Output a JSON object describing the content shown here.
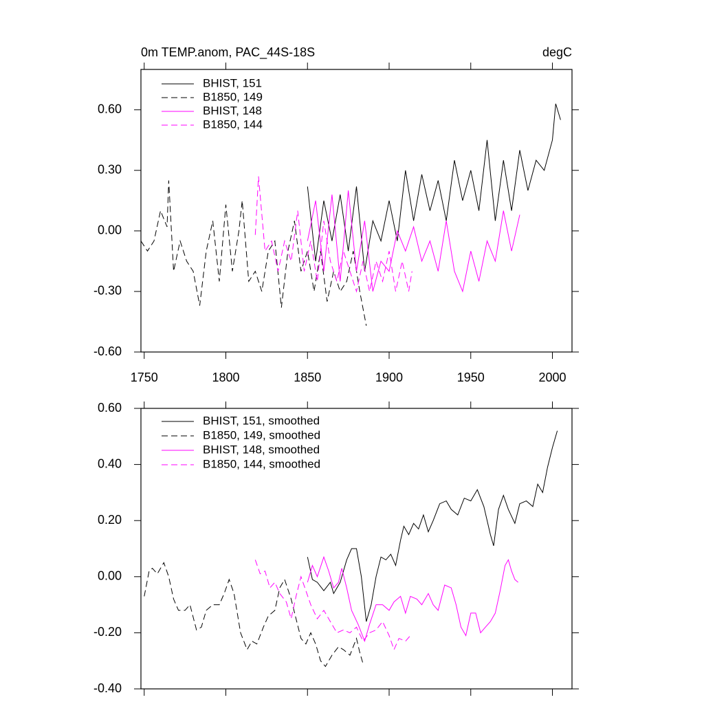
{
  "chart_data": [
    {
      "type": "line",
      "title": "0m TEMP.anom, PAC_44S-18S",
      "units": "degC",
      "xlim": [
        1748,
        2012
      ],
      "ylim": [
        -0.6,
        0.8
      ],
      "xticks": [
        1750,
        1800,
        1850,
        1900,
        1950,
        2000
      ],
      "yticks": [
        {
          "value": -0.6,
          "label": "-0.60"
        },
        {
          "value": -0.3,
          "label": "-0.30"
        },
        {
          "value": 0,
          "label": "0.00"
        },
        {
          "value": 0.3,
          "label": "0.30"
        },
        {
          "value": 0.6,
          "label": "0.60"
        }
      ],
      "series": [
        {
          "name": "BHIST, 151",
          "color": "#000000",
          "linestyle": "solid",
          "x": [
            1850,
            1855,
            1860,
            1865,
            1870,
            1875,
            1880,
            1885,
            1890,
            1895,
            1900,
            1905,
            1910,
            1915,
            1920,
            1925,
            1930,
            1935,
            1940,
            1945,
            1950,
            1955,
            1960,
            1965,
            1970,
            1975,
            1980,
            1985,
            1990,
            1995,
            2000,
            2002,
            2005
          ],
          "values": [
            0.22,
            -0.15,
            0.15,
            -0.05,
            0.18,
            -0.1,
            0.22,
            -0.2,
            0.05,
            -0.05,
            0.15,
            -0.05,
            0.3,
            0.05,
            0.28,
            0.1,
            0.25,
            0.05,
            0.35,
            0.15,
            0.3,
            0.1,
            0.45,
            0.05,
            0.35,
            0.1,
            0.4,
            0.2,
            0.35,
            0.3,
            0.45,
            0.63,
            0.55
          ]
        },
        {
          "name": "B1850, 149",
          "color": "#000000",
          "linestyle": "dashed",
          "x": [
            1748,
            1752,
            1756,
            1760,
            1764,
            1765,
            1768,
            1772,
            1776,
            1780,
            1784,
            1788,
            1792,
            1796,
            1800,
            1804,
            1808,
            1810,
            1814,
            1818,
            1822,
            1826,
            1830,
            1834,
            1838,
            1842,
            1846,
            1850,
            1854,
            1858,
            1862,
            1866,
            1870,
            1874,
            1878,
            1882,
            1886
          ],
          "values": [
            -0.05,
            -0.1,
            -0.05,
            0.1,
            0.02,
            0.25,
            -0.2,
            -0.05,
            -0.15,
            -0.2,
            -0.37,
            -0.1,
            0.05,
            -0.25,
            0.13,
            -0.2,
            0.0,
            0.15,
            -0.25,
            -0.2,
            -0.3,
            -0.1,
            -0.05,
            -0.38,
            -0.1,
            0.05,
            -0.2,
            -0.1,
            -0.3,
            -0.1,
            -0.35,
            -0.2,
            -0.3,
            -0.25,
            -0.1,
            -0.3,
            -0.47
          ]
        },
        {
          "name": "BHIST, 148",
          "color": "#ff00ff",
          "linestyle": "solid",
          "x": [
            1850,
            1855,
            1860,
            1865,
            1870,
            1875,
            1880,
            1885,
            1890,
            1895,
            1900,
            1905,
            1910,
            1915,
            1920,
            1925,
            1930,
            1935,
            1940,
            1945,
            1950,
            1955,
            1960,
            1965,
            1970,
            1975,
            1980
          ],
          "values": [
            -0.05,
            0.15,
            -0.2,
            0.18,
            -0.25,
            0.2,
            -0.2,
            0.05,
            -0.3,
            -0.15,
            -0.2,
            0.0,
            -0.1,
            0.02,
            -0.15,
            -0.05,
            -0.2,
            0.05,
            -0.2,
            -0.3,
            -0.1,
            -0.25,
            -0.05,
            -0.15,
            0.1,
            -0.1,
            0.08
          ]
        },
        {
          "name": "B1850, 144",
          "color": "#ff00ff",
          "linestyle": "dashed",
          "x": [
            1818,
            1820,
            1824,
            1828,
            1832,
            1836,
            1840,
            1844,
            1848,
            1852,
            1856,
            1860,
            1864,
            1868,
            1872,
            1876,
            1880,
            1884,
            1888,
            1892,
            1896,
            1900,
            1904,
            1908,
            1912,
            1914
          ],
          "values": [
            -0.02,
            0.27,
            -0.1,
            -0.05,
            -0.2,
            -0.05,
            -0.15,
            0.1,
            -0.2,
            -0.05,
            -0.25,
            0.05,
            -0.15,
            -0.25,
            -0.1,
            -0.2,
            -0.3,
            -0.15,
            -0.3,
            -0.15,
            -0.25,
            -0.1,
            -0.3,
            -0.15,
            -0.3,
            -0.2
          ]
        }
      ]
    },
    {
      "type": "line",
      "xlim": [
        1748,
        2012
      ],
      "ylim": [
        -0.4,
        0.6
      ],
      "xticks": [
        1750,
        1800,
        1850,
        1900,
        1950,
        2000
      ],
      "yticks": [
        {
          "value": -0.4,
          "label": "-0.40"
        },
        {
          "value": -0.2,
          "label": "-0.20"
        },
        {
          "value": 0,
          "label": "0.00"
        },
        {
          "value": 0.2,
          "label": "0.20"
        },
        {
          "value": 0.4,
          "label": "0.40"
        },
        {
          "value": 0.6,
          "label": "0.60"
        }
      ],
      "series": [
        {
          "name": "BHIST, 151, smoothed",
          "color": "#000000",
          "linestyle": "solid",
          "x": [
            1850,
            1853,
            1856,
            1860,
            1864,
            1866,
            1870,
            1874,
            1877,
            1880,
            1883,
            1886,
            1889,
            1892,
            1895,
            1898,
            1901,
            1904,
            1907,
            1909,
            1912,
            1915,
            1918,
            1921,
            1924,
            1927,
            1931,
            1935,
            1938,
            1942,
            1946,
            1950,
            1954,
            1958,
            1962,
            1964,
            1967,
            1970,
            1973,
            1977,
            1980,
            1984,
            1988,
            1991,
            1994,
            1997,
            2000,
            2003
          ],
          "values": [
            0.07,
            -0.01,
            -0.02,
            -0.05,
            -0.02,
            -0.06,
            -0.02,
            0.06,
            0.1,
            0.1,
            0.0,
            -0.16,
            -0.1,
            0.0,
            0.07,
            0.06,
            0.08,
            0.04,
            0.13,
            0.18,
            0.15,
            0.19,
            0.17,
            0.22,
            0.16,
            0.2,
            0.26,
            0.27,
            0.24,
            0.22,
            0.28,
            0.27,
            0.31,
            0.25,
            0.15,
            0.11,
            0.24,
            0.29,
            0.24,
            0.19,
            0.26,
            0.27,
            0.25,
            0.33,
            0.3,
            0.39,
            0.46,
            0.52
          ]
        },
        {
          "name": "B1850, 149, smoothed",
          "color": "#000000",
          "linestyle": "dashed",
          "x": [
            1750,
            1753,
            1755,
            1758,
            1762,
            1765,
            1768,
            1771,
            1775,
            1778,
            1782,
            1785,
            1788,
            1792,
            1796,
            1799,
            1802,
            1805,
            1809,
            1813,
            1816,
            1819,
            1823,
            1826,
            1830,
            1833,
            1836,
            1840,
            1843,
            1846,
            1849,
            1852,
            1855,
            1858,
            1861,
            1865,
            1869,
            1872,
            1876,
            1880,
            1882,
            1884
          ],
          "values": [
            -0.07,
            0.02,
            0.03,
            0.01,
            0.05,
            0.0,
            -0.08,
            -0.12,
            -0.12,
            -0.1,
            -0.19,
            -0.18,
            -0.12,
            -0.1,
            -0.1,
            -0.06,
            -0.01,
            -0.06,
            -0.2,
            -0.26,
            -0.23,
            -0.24,
            -0.18,
            -0.14,
            -0.12,
            -0.04,
            -0.01,
            -0.08,
            -0.15,
            -0.22,
            -0.24,
            -0.2,
            -0.24,
            -0.3,
            -0.32,
            -0.28,
            -0.25,
            -0.26,
            -0.28,
            -0.22,
            -0.27,
            -0.31
          ]
        },
        {
          "name": "BHIST, 148, smoothed",
          "color": "#ff00ff",
          "linestyle": "solid",
          "x": [
            1850,
            1853,
            1856,
            1860,
            1863,
            1866,
            1869,
            1871,
            1874,
            1877,
            1881,
            1885,
            1888,
            1892,
            1896,
            1900,
            1903,
            1907,
            1910,
            1913,
            1917,
            1920,
            1924,
            1927,
            1930,
            1934,
            1938,
            1941,
            1944,
            1947,
            1950,
            1953,
            1956,
            1959,
            1962,
            1965,
            1968,
            1971,
            1973,
            1975,
            1977,
            1979
          ],
          "values": [
            -0.02,
            0.04,
            0.0,
            0.07,
            0.02,
            -0.04,
            -0.02,
            0.03,
            -0.04,
            -0.12,
            -0.17,
            -0.23,
            -0.17,
            -0.1,
            -0.1,
            -0.12,
            -0.09,
            -0.07,
            -0.13,
            -0.07,
            -0.08,
            -0.1,
            -0.06,
            -0.1,
            -0.12,
            -0.03,
            -0.04,
            -0.1,
            -0.18,
            -0.21,
            -0.13,
            -0.13,
            -0.2,
            -0.18,
            -0.16,
            -0.13,
            -0.05,
            0.04,
            0.06,
            0.02,
            -0.01,
            -0.02
          ]
        },
        {
          "name": "B1850, 144, smoothed",
          "color": "#ff00ff",
          "linestyle": "dashed",
          "x": [
            1818,
            1821,
            1824,
            1827,
            1830,
            1833,
            1837,
            1840,
            1843,
            1846,
            1849,
            1852,
            1856,
            1860,
            1864,
            1868,
            1872,
            1876,
            1880,
            1884,
            1888,
            1892,
            1896,
            1900,
            1903,
            1906,
            1910,
            1913
          ],
          "values": [
            0.06,
            0.01,
            0.02,
            -0.04,
            -0.02,
            -0.06,
            -0.09,
            -0.15,
            -0.07,
            0.0,
            -0.05,
            -0.1,
            -0.15,
            -0.12,
            -0.16,
            -0.2,
            -0.19,
            -0.2,
            -0.18,
            -0.23,
            -0.2,
            -0.19,
            -0.16,
            -0.21,
            -0.26,
            -0.22,
            -0.23,
            -0.21
          ]
        }
      ]
    }
  ]
}
